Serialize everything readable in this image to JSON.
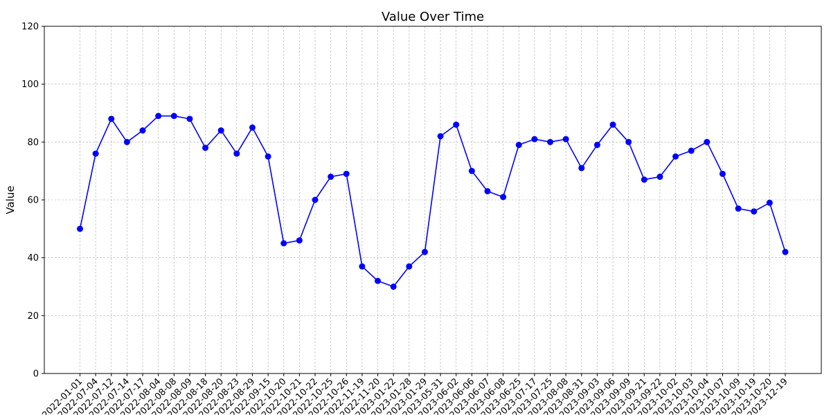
{
  "chart_data": {
    "type": "line",
    "title": "Value Over Time",
    "xlabel": "",
    "ylabel": "Value",
    "ylim": [
      0,
      120
    ],
    "yticks": [
      0,
      20,
      40,
      60,
      80,
      100,
      120
    ],
    "grid": true,
    "legend": "none",
    "colors": {
      "line": "#0000ff",
      "marker": "#0000ff",
      "grid": "#b0b0b0"
    },
    "categories": [
      "2022-01-01",
      "2022-07-04",
      "2022-07-12",
      "2022-07-14",
      "2022-07-17",
      "2022-08-04",
      "2022-08-08",
      "2022-08-09",
      "2022-08-18",
      "2022-08-20",
      "2022-08-23",
      "2022-08-29",
      "2022-09-15",
      "2022-10-20",
      "2022-10-21",
      "2022-10-22",
      "2022-10-25",
      "2022-10-26",
      "2022-11-19",
      "2022-11-20",
      "2023-01-22",
      "2023-01-28",
      "2023-01-29",
      "2023-05-31",
      "2023-06-02",
      "2023-06-06",
      "2023-06-07",
      "2023-06-08",
      "2023-06-25",
      "2023-07-17",
      "2023-07-25",
      "2023-08-08",
      "2023-08-31",
      "2023-09-03",
      "2023-09-06",
      "2023-09-09",
      "2023-09-21",
      "2023-09-22",
      "2023-10-02",
      "2023-10-03",
      "2023-10-04",
      "2023-10-07",
      "2023-10-09",
      "2023-10-19",
      "2023-10-20",
      "2023-12-19"
    ],
    "values": [
      50,
      76,
      88,
      80,
      84,
      89,
      89,
      88,
      78,
      84,
      76,
      85,
      75,
      45,
      46,
      60,
      68,
      69,
      37,
      32,
      30,
      37,
      42,
      82,
      86,
      70,
      63,
      61,
      79,
      81,
      80,
      81,
      71,
      79,
      86,
      80,
      67,
      68,
      75,
      77,
      80,
      69,
      57,
      56,
      59,
      42
    ]
  }
}
